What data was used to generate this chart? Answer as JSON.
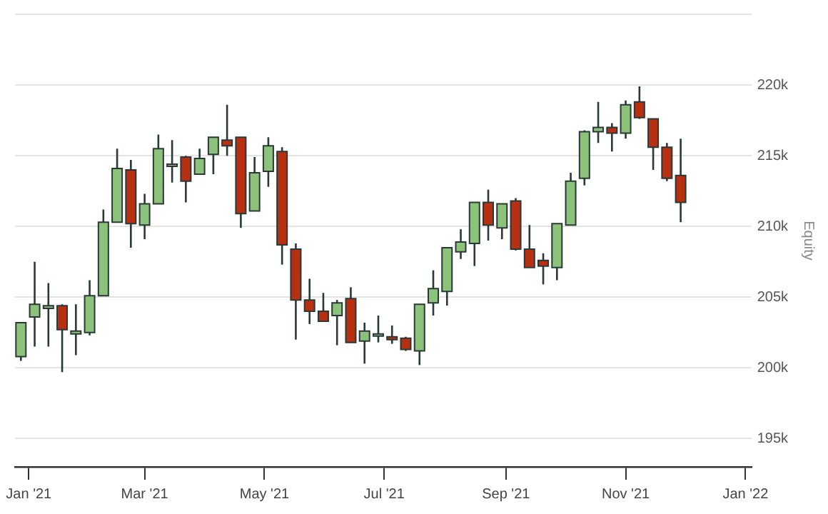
{
  "chart_data": {
    "type": "candlestick",
    "ylabel": "Equity",
    "x": [
      "2020-12-28",
      "2021-01-04",
      "2021-01-11",
      "2021-01-18",
      "2021-01-25",
      "2021-02-01",
      "2021-02-08",
      "2021-02-15",
      "2021-02-22",
      "2021-03-01",
      "2021-03-08",
      "2021-03-15",
      "2021-03-22",
      "2021-03-29",
      "2021-04-05",
      "2021-04-12",
      "2021-04-19",
      "2021-04-26",
      "2021-05-03",
      "2021-05-10",
      "2021-05-17",
      "2021-05-24",
      "2021-05-31",
      "2021-06-07",
      "2021-06-14",
      "2021-06-21",
      "2021-06-28",
      "2021-07-05",
      "2021-07-12",
      "2021-07-19",
      "2021-07-26",
      "2021-08-02",
      "2021-08-09",
      "2021-08-16",
      "2021-08-23",
      "2021-08-30",
      "2021-09-06",
      "2021-09-13",
      "2021-09-20",
      "2021-09-27",
      "2021-10-04",
      "2021-10-11",
      "2021-10-18",
      "2021-10-25",
      "2021-11-01",
      "2021-11-08",
      "2021-11-15",
      "2021-11-22",
      "2021-11-29"
    ],
    "ohlc": [
      [
        200800,
        203200,
        200500,
        203200
      ],
      [
        203600,
        207500,
        201500,
        204500
      ],
      [
        204200,
        206000,
        201500,
        204400
      ],
      [
        204400,
        204500,
        199700,
        202700
      ],
      [
        202400,
        204500,
        200900,
        202600
      ],
      [
        202500,
        206200,
        202300,
        205100
      ],
      [
        205100,
        211200,
        205100,
        210300
      ],
      [
        210300,
        215500,
        210300,
        214100
      ],
      [
        214000,
        214700,
        208500,
        210200
      ],
      [
        210100,
        212300,
        209100,
        211600
      ],
      [
        211600,
        216500,
        211600,
        215500
      ],
      [
        214300,
        216100,
        213100,
        214400
      ],
      [
        214900,
        215000,
        211700,
        213200
      ],
      [
        213700,
        215500,
        213700,
        214800
      ],
      [
        215100,
        216300,
        213700,
        216300
      ],
      [
        216100,
        218600,
        215000,
        215700
      ],
      [
        216300,
        216300,
        209900,
        210900
      ],
      [
        211100,
        214900,
        211100,
        213800
      ],
      [
        213900,
        216300,
        212800,
        215700
      ],
      [
        215300,
        215600,
        207300,
        208700
      ],
      [
        208400,
        208800,
        202000,
        204800
      ],
      [
        204800,
        206300,
        203100,
        204000
      ],
      [
        204000,
        205300,
        203300,
        203300
      ],
      [
        203700,
        204800,
        201600,
        204600
      ],
      [
        204900,
        205700,
        201800,
        201800
      ],
      [
        201900,
        203200,
        200300,
        202600
      ],
      [
        202300,
        203700,
        201800,
        202400
      ],
      [
        202200,
        203000,
        201700,
        202000
      ],
      [
        202100,
        202200,
        201200,
        201300
      ],
      [
        201200,
        204500,
        200200,
        204500
      ],
      [
        204600,
        206900,
        203700,
        205600
      ],
      [
        205400,
        208500,
        204400,
        208500
      ],
      [
        208200,
        209800,
        207700,
        208900
      ],
      [
        208800,
        211700,
        207200,
        211700
      ],
      [
        211700,
        212600,
        209000,
        210100
      ],
      [
        209900,
        211600,
        209100,
        211600
      ],
      [
        211800,
        212000,
        208300,
        208400
      ],
      [
        208400,
        210100,
        207100,
        207100
      ],
      [
        207600,
        208100,
        205900,
        207200
      ],
      [
        207100,
        210200,
        206200,
        210200
      ],
      [
        210100,
        213800,
        210100,
        213200
      ],
      [
        213400,
        216800,
        212900,
        216700
      ],
      [
        216700,
        218800,
        215900,
        217000
      ],
      [
        217000,
        217300,
        215300,
        216600
      ],
      [
        216600,
        218900,
        216200,
        218600
      ],
      [
        218800,
        219900,
        217600,
        217700
      ],
      [
        217600,
        217600,
        214000,
        215600
      ],
      [
        215600,
        215900,
        213200,
        213400
      ],
      [
        213600,
        216200,
        210300,
        211700
      ]
    ],
    "colors": [
      "#8dc27a",
      "#8dc27a",
      "#8dc27a",
      "#b83012",
      "#8dc27a",
      "#8dc27a",
      "#8dc27a",
      "#8dc27a",
      "#b83012",
      "#8dc27a",
      "#8dc27a",
      "#8dc27a",
      "#b83012",
      "#8dc27a",
      "#8dc27a",
      "#b83012",
      "#b83012",
      "#8dc27a",
      "#8dc27a",
      "#b83012",
      "#b83012",
      "#b83012",
      "#b83012",
      "#8dc27a",
      "#b83012",
      "#8dc27a",
      "#8dc27a",
      "#b83012",
      "#b83012",
      "#8dc27a",
      "#8dc27a",
      "#8dc27a",
      "#8dc27a",
      "#8dc27a",
      "#b83012",
      "#8dc27a",
      "#b83012",
      "#b83012",
      "#b83012",
      "#8dc27a",
      "#8dc27a",
      "#8dc27a",
      "#8dc27a",
      "#b83012",
      "#8dc27a",
      "#b83012",
      "#b83012",
      "#b83012",
      "#b83012"
    ],
    "xlim": [
      "2020-12-25",
      "2022-01-04"
    ],
    "xticks": [
      {
        "value": "2021-01-01",
        "label": "Jan '21"
      },
      {
        "value": "2021-03-01",
        "label": "Mar '21"
      },
      {
        "value": "2021-05-01",
        "label": "May '21"
      },
      {
        "value": "2021-07-01",
        "label": "Jul '21"
      },
      {
        "value": "2021-09-01",
        "label": "Sep '21"
      },
      {
        "value": "2021-11-01",
        "label": "Nov '21"
      },
      {
        "value": "2022-01-01",
        "label": "Jan '22"
      }
    ],
    "ylim": [
      193000,
      225000
    ],
    "yticks": [
      {
        "value": 195000,
        "label": "195k"
      },
      {
        "value": 200000,
        "label": "200k"
      },
      {
        "value": 205000,
        "label": "205k"
      },
      {
        "value": 210000,
        "label": "210k"
      },
      {
        "value": 215000,
        "label": "215k"
      },
      {
        "value": 220000,
        "label": "220k"
      },
      {
        "value": 225000,
        "label": null
      }
    ],
    "grid": "y"
  }
}
